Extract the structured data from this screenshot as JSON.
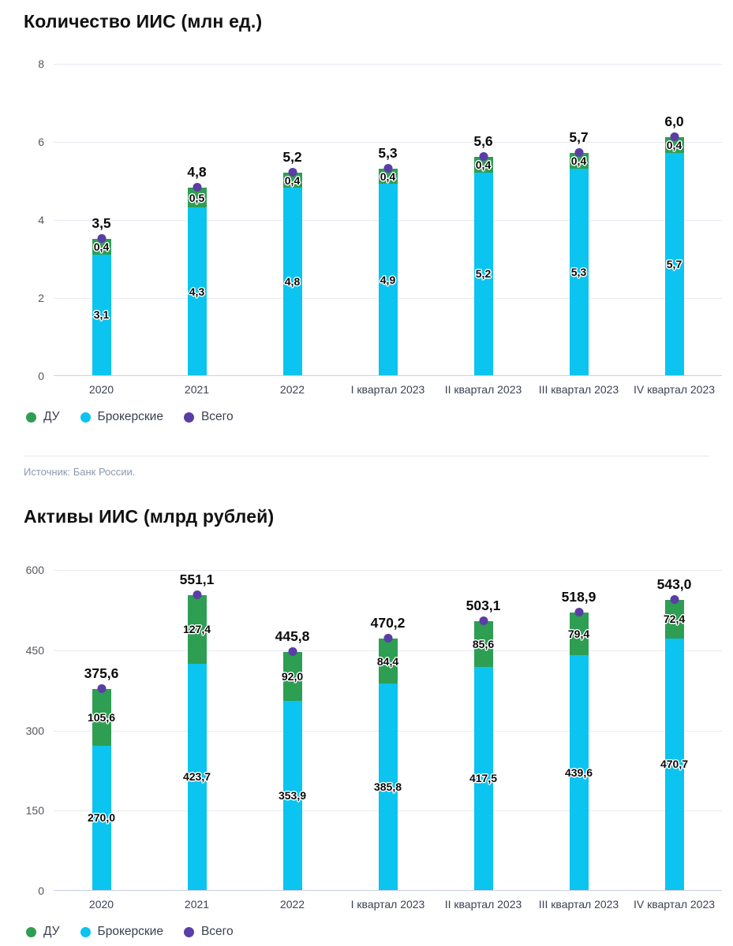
{
  "source": {
    "label": "Источник: Банк России."
  },
  "legend": {
    "items": [
      {
        "name": "ДУ",
        "color": "#2E9E52"
      },
      {
        "name": "Брокерские",
        "color": "#0BC4EF"
      },
      {
        "name": "Всего",
        "color": "#5B3DA6"
      }
    ]
  },
  "chart_data": [
    {
      "type": "bar",
      "stacked": true,
      "title": "Количество ИИС (млн ед.)",
      "categories": [
        "2020",
        "2021",
        "2022",
        "I квартал 2023",
        "II квартал 2023",
        "III квартал 2023",
        "IV квартал 2023"
      ],
      "series": [
        {
          "name": "Брокерские",
          "color": "#0BC4EF",
          "values": [
            3.1,
            4.3,
            4.8,
            4.9,
            5.2,
            5.3,
            5.7
          ]
        },
        {
          "name": "ДУ",
          "color": "#2E9E52",
          "values": [
            0.4,
            0.5,
            0.4,
            0.4,
            0.4,
            0.4,
            0.4
          ]
        }
      ],
      "totals": {
        "name": "Всего",
        "color": "#5B3DA6",
        "values": [
          3.5,
          4.8,
          5.2,
          5.3,
          5.6,
          5.7,
          6.0
        ]
      },
      "ylim": [
        0,
        8
      ],
      "yticks": [
        8,
        6,
        4,
        2,
        0
      ],
      "grid": true,
      "legend_position": "bottom",
      "decimal_separator": ","
    },
    {
      "type": "bar",
      "stacked": true,
      "title": "Активы ИИС (млрд рублей)",
      "categories": [
        "2020",
        "2021",
        "2022",
        "I квартал 2023",
        "II квартал 2023",
        "III квартал 2023",
        "IV квартал 2023"
      ],
      "series": [
        {
          "name": "Брокерские",
          "color": "#0BC4EF",
          "values": [
            270.0,
            423.7,
            353.9,
            385.8,
            417.5,
            439.6,
            470.7
          ]
        },
        {
          "name": "ДУ",
          "color": "#2E9E52",
          "values": [
            105.6,
            127.4,
            92.0,
            84.4,
            85.6,
            79.4,
            72.4
          ]
        }
      ],
      "totals": {
        "name": "Всего",
        "color": "#5B3DA6",
        "values": [
          375.6,
          551.1,
          445.8,
          470.2,
          503.1,
          518.9,
          543.0
        ]
      },
      "ylim": [
        0,
        600
      ],
      "yticks": [
        600,
        450,
        300,
        150,
        0
      ],
      "grid": true,
      "legend_position": "bottom",
      "decimal_separator": ","
    }
  ]
}
